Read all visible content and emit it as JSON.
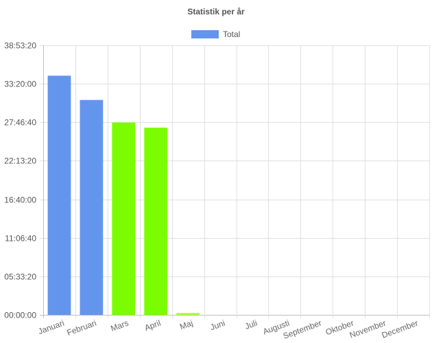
{
  "chart_data": {
    "type": "bar",
    "title": "Statistik per år",
    "xlabel": "",
    "ylabel": "",
    "legend": {
      "position": "top",
      "entries": [
        {
          "label": "Total",
          "color": "#6495ed"
        }
      ]
    },
    "categories": [
      "Januari",
      "Februari",
      "Mars",
      "April",
      "Maj",
      "Juni",
      "Juli",
      "Augusti",
      "September",
      "Oktober",
      "November",
      "December"
    ],
    "series": [
      {
        "name": "Total",
        "values_seconds": [
          124200,
          111600,
          99900,
          97200,
          1000,
          0,
          0,
          0,
          0,
          0,
          0,
          0
        ],
        "colors": [
          "#6495ed",
          "#6495ed",
          "#7cfc00",
          "#7cfc00",
          "#adff2f",
          "#6495ed",
          "#6495ed",
          "#6495ed",
          "#6495ed",
          "#6495ed",
          "#6495ed",
          "#6495ed"
        ]
      }
    ],
    "y_unit": "seconds",
    "y_tick_labels": [
      "00:00:00",
      "05:33:20",
      "11:06:40",
      "16:40:00",
      "22:13:20",
      "27:46:40",
      "33:20:00",
      "38:53:20"
    ],
    "y_tick_values_seconds": [
      0,
      20000,
      40000,
      60000,
      80000,
      100000,
      120000,
      140000
    ],
    "ylim_seconds": [
      0,
      140000
    ],
    "grid": true
  }
}
